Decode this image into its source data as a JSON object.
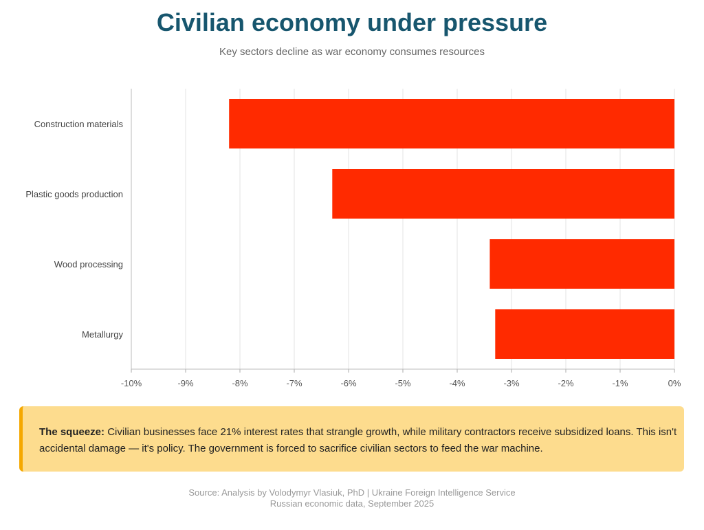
{
  "title": "Civilian economy under pressure",
  "subtitle": "Key sectors decline as war economy consumes resources",
  "chart_data": {
    "type": "bar",
    "orientation": "horizontal",
    "categories": [
      "Construction materials",
      "Plastic goods production",
      "Wood processing",
      "Metallurgy"
    ],
    "values": [
      -8.2,
      -6.3,
      -3.4,
      -3.3
    ],
    "xlim": [
      -10,
      0
    ],
    "xticks": [
      "-10%",
      "-9%",
      "-8%",
      "-7%",
      "-6%",
      "-5%",
      "-4%",
      "-3%",
      "-2%",
      "-1%",
      "0%"
    ],
    "grid": true,
    "bar_color": "#ff2a00"
  },
  "callout": {
    "bold": "The squeeze:",
    "text": " Civilian businesses face 21% interest rates that strangle growth, while military contractors receive subsidized loans. This isn't accidental damage — it's policy. The government is forced to sacrifice civilian sectors to feed the war machine."
  },
  "source": {
    "line1": "Source: Analysis by Volodymyr Vlasiuk, PhD | Ukraine Foreign Intelligence Service",
    "line2": "Russian economic data, September 2025"
  }
}
